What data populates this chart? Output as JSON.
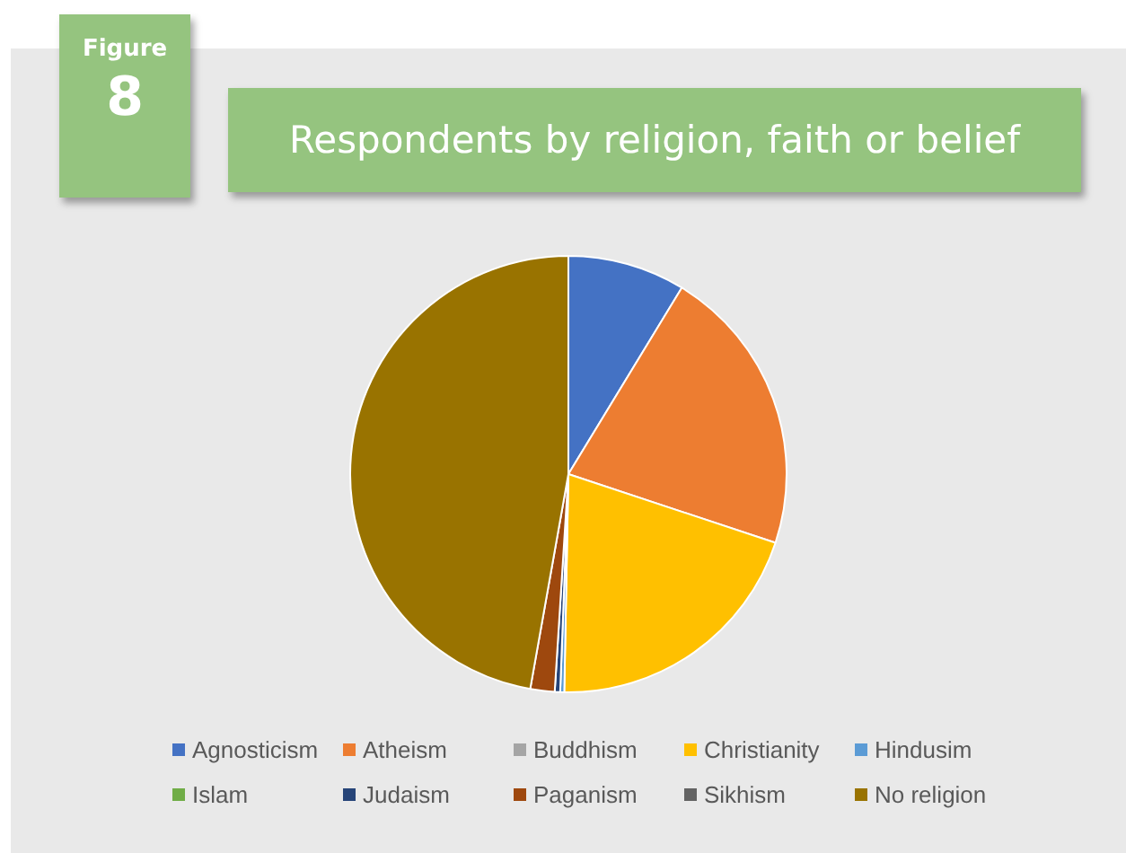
{
  "chart_data": {
    "type": "pie",
    "title": "Respondents by religion, faith or belief",
    "annotations": [
      "Figure",
      "8"
    ],
    "categories": [
      "Agnosticism",
      "Atheism",
      "Buddhism",
      "Christianity",
      "Hindusim",
      "Islam",
      "Judaism",
      "Paganism",
      "Sikhism",
      "No religion"
    ],
    "values": [
      8.7,
      21.4,
      null,
      20.2,
      0.3,
      null,
      0.4,
      1.8,
      null,
      47.2
    ],
    "colors": [
      "#4472c4",
      "#ed7d31",
      "#a5a5a5",
      "#ffc000",
      "#5b9bd5",
      "#70ad47",
      "#264478",
      "#9e480e",
      "#636363",
      "#997300"
    ],
    "legend": "bottom"
  }
}
